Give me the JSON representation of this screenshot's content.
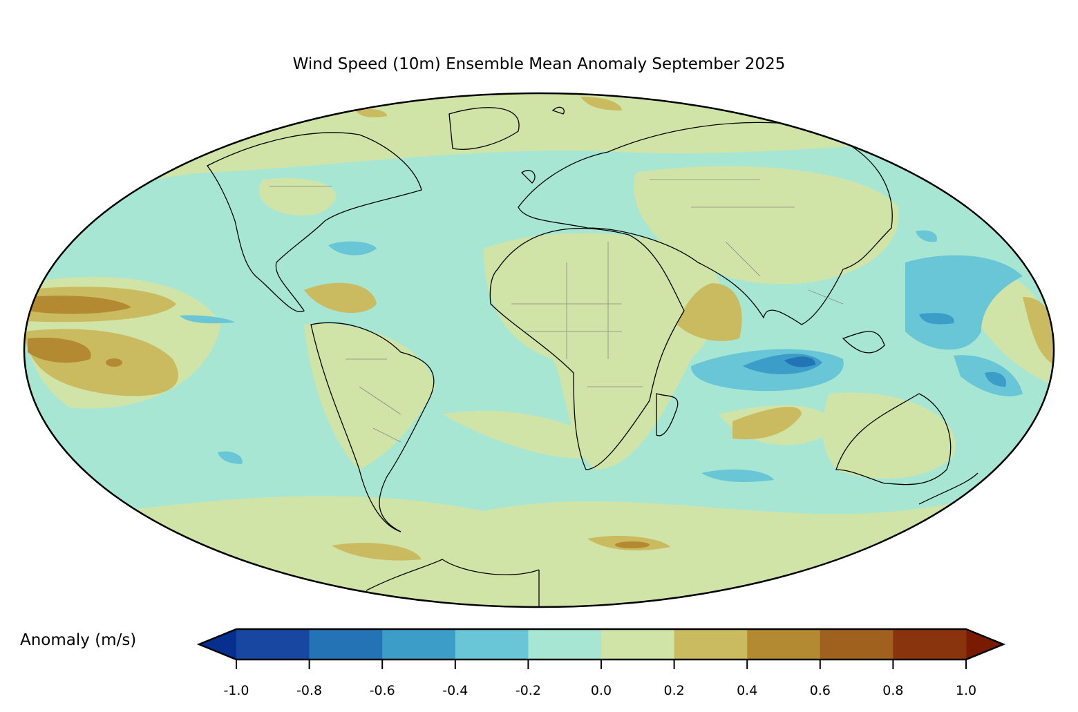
{
  "chart_data": {
    "type": "map",
    "title": "Wind Speed (10m) Ensemble Mean Anomaly September 2025",
    "projection": "Mollweide",
    "variable": "Wind Speed (10m) anomaly",
    "colorbar": {
      "label": "Anomaly (m/s)",
      "levels": [
        -1.0,
        -0.8,
        -0.6,
        -0.4,
        -0.2,
        0.0,
        0.2,
        0.4,
        0.6,
        0.8,
        1.0
      ],
      "tick_labels": [
        "-1.0",
        "-0.8",
        "-0.6",
        "-0.4",
        "-0.2",
        "0.0",
        "0.2",
        "0.4",
        "0.6",
        "0.8",
        "1.0"
      ],
      "colors": [
        "#1747a0",
        "#2474b5",
        "#3b9dc8",
        "#68c6d6",
        "#a8e6d4",
        "#d0e4a8",
        "#cbbb60",
        "#b38a32",
        "#a0601e",
        "#8a340e"
      ],
      "under_color": "#072f8f",
      "over_color": "#7a1a00",
      "extend": "both"
    }
  }
}
